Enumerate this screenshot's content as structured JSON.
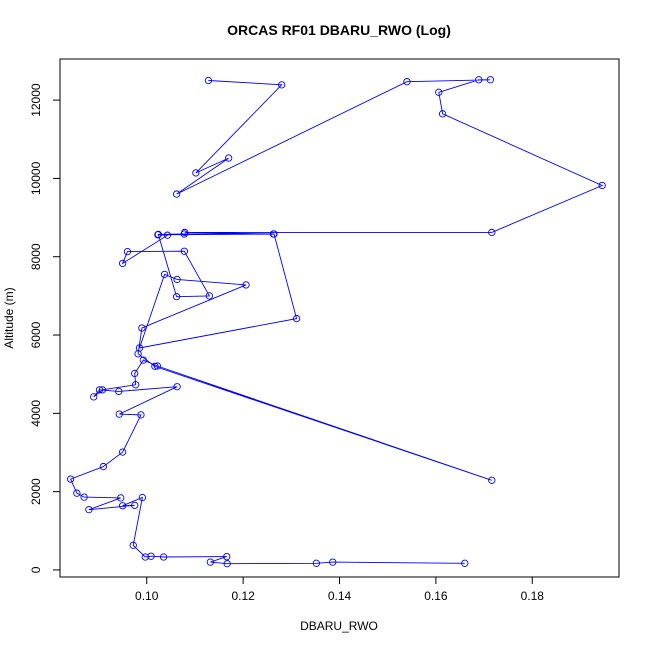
{
  "chart_data": {
    "type": "line",
    "title": "ORCAS RF01 DBARU_RWO (Log)",
    "xlabel": "DBARU_RWO",
    "ylabel": "Altitude (m)",
    "xlim": [
      0.082,
      0.198
    ],
    "ylim": [
      -180,
      13050
    ],
    "x_ticks": [
      0.1,
      0.12,
      0.14,
      0.16,
      0.18
    ],
    "x_tick_labels": [
      "0.10",
      "0.12",
      "0.14",
      "0.16",
      "0.18"
    ],
    "y_ticks": [
      0,
      2000,
      4000,
      6000,
      8000,
      10000,
      12000
    ],
    "y_tick_labels": [
      "0",
      "2000",
      "4000",
      "6000",
      "8000",
      "10000",
      "12000"
    ],
    "line_color": "#0000ff",
    "marker": "open-circle",
    "grid": false,
    "legend": "none",
    "series": [
      {
        "x": [
          0.166,
          0.1386,
          0.1352,
          0.1167,
          0.1132,
          0.1166,
          0.1035,
          0.1009,
          0.0997,
          0.0972,
          0.0991,
          0.095,
          0.0975,
          0.088,
          0.0946,
          0.087,
          0.0855,
          0.0842,
          0.091,
          0.095,
          0.0988,
          0.0943,
          0.1063,
          0.0942,
          0.0902,
          0.089,
          0.0908,
          0.0977,
          0.0975,
          0.0993,
          0.1022,
          0.1716,
          0.1017,
          0.0982,
          0.099,
          0.1206,
          0.1063,
          0.1037,
          0.0985,
          0.1311,
          0.1264,
          0.1023,
          0.1043,
          0.095,
          0.096,
          0.1078,
          0.113,
          0.1062,
          0.1024,
          0.1078,
          0.1263,
          0.1079,
          0.1716,
          0.1945,
          0.1614,
          0.1606,
          0.1689,
          0.1713,
          0.154,
          0.1062,
          0.117,
          0.1102,
          0.128,
          0.1128
        ],
        "y": [
          170,
          200,
          170,
          160,
          200,
          340,
          330,
          350,
          330,
          630,
          1850,
          1640,
          1650,
          1540,
          1840,
          1860,
          1960,
          2320,
          2640,
          3010,
          3960,
          3980,
          4680,
          4560,
          4600,
          4420,
          4600,
          4730,
          5020,
          5360,
          5210,
          2290,
          5200,
          5520,
          6180,
          7280,
          7420,
          7550,
          5670,
          6420,
          8580,
          8560,
          8550,
          7830,
          8130,
          8140,
          7000,
          6980,
          8570,
          8580,
          8580,
          8620,
          8620,
          9820,
          11650,
          12200,
          12520,
          12520,
          12470,
          9600,
          10520,
          10140,
          12390,
          12500
        ]
      }
    ]
  }
}
